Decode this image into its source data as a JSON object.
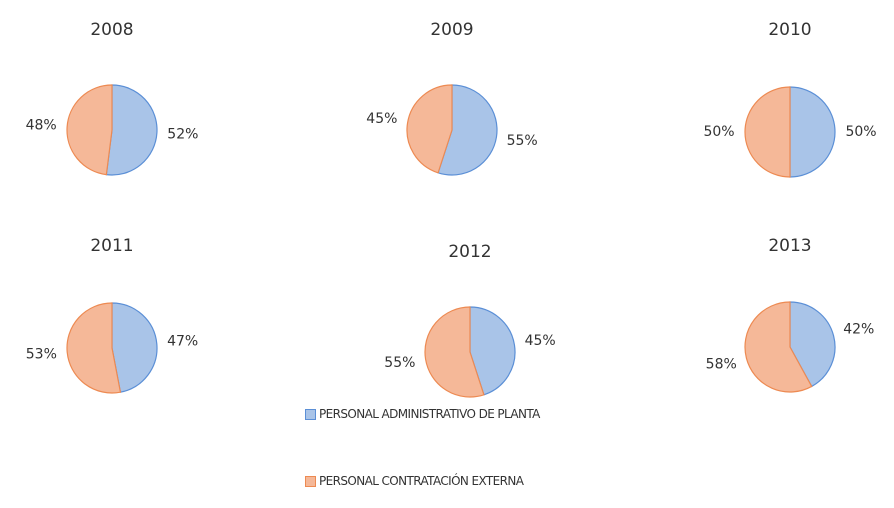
{
  "chart_data": [
    {
      "type": "pie",
      "title": "2008",
      "values": [
        52,
        48
      ],
      "value_labels": [
        "52%",
        "48%"
      ]
    },
    {
      "type": "pie",
      "title": "2009",
      "values": [
        55,
        45
      ],
      "value_labels": [
        "55%",
        "45%"
      ]
    },
    {
      "type": "pie",
      "title": "2010",
      "values": [
        50,
        50
      ],
      "value_labels": [
        "50%",
        "50%"
      ]
    },
    {
      "type": "pie",
      "title": "2011",
      "values": [
        47,
        53
      ],
      "value_labels": [
        "47%",
        "53%"
      ]
    },
    {
      "type": "pie",
      "title": "2012",
      "values": [
        45,
        55
      ],
      "value_labels": [
        "45%",
        "55%"
      ]
    },
    {
      "type": "pie",
      "title": "2013",
      "values": [
        42,
        58
      ],
      "value_labels": [
        "42%",
        "58%"
      ]
    }
  ],
  "legend": {
    "labels": [
      "PERSONAL ADMINISTRATIVO DE PLANTA",
      "PERSONAL CONTRATACIÓN EXTERNA"
    ],
    "colors": [
      "#a9c4e8",
      "#f5b898"
    ],
    "edge_colors": [
      "#5b8fd6",
      "#ed8a52"
    ]
  }
}
